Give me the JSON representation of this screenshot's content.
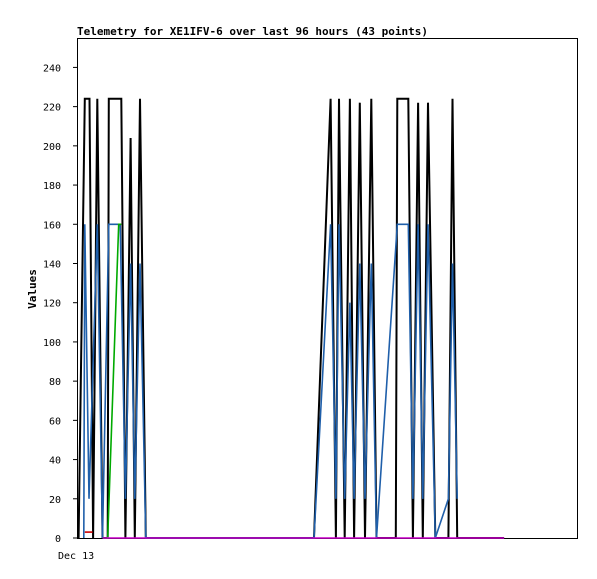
{
  "chart_data": {
    "type": "line",
    "title": "Telemetry for XE1IFV-6 over last 96 hours (43 points)",
    "xlabel": "",
    "ylabel": "Values",
    "x_tick_labels": [
      "Dec 13"
    ],
    "y_ticks": [
      0,
      20,
      40,
      60,
      80,
      100,
      120,
      140,
      160,
      180,
      200,
      220,
      240
    ],
    "ylim": [
      0,
      255
    ],
    "grid": false,
    "legend": "none",
    "series": [
      {
        "color": "#000000",
        "points": [
          [
            0.3,
            0
          ],
          [
            1.5,
            224
          ],
          [
            2.4,
            224
          ],
          [
            3.1,
            0
          ],
          [
            3.9,
            224
          ],
          [
            4.9,
            0
          ],
          [
            5.9,
            0
          ],
          [
            6.1,
            224
          ],
          [
            8.5,
            224
          ],
          [
            9.3,
            0
          ],
          [
            10.3,
            204
          ],
          [
            11.1,
            0
          ],
          [
            12.1,
            224
          ],
          [
            13.2,
            0
          ],
          [
            14.0,
            0
          ],
          [
            45.5,
            0
          ],
          [
            48.7,
            224
          ],
          [
            49.7,
            0
          ],
          [
            50.3,
            224
          ],
          [
            51.4,
            0
          ],
          [
            52.4,
            224
          ],
          [
            53.2,
            0
          ],
          [
            54.3,
            222
          ],
          [
            55.3,
            0
          ],
          [
            56.5,
            224
          ],
          [
            57.5,
            0
          ],
          [
            61.2,
            0
          ],
          [
            61.5,
            224
          ],
          [
            63.6,
            224
          ],
          [
            64.5,
            0
          ],
          [
            65.5,
            222
          ],
          [
            66.4,
            0
          ],
          [
            67.4,
            222
          ],
          [
            68.8,
            0
          ],
          [
            71.3,
            0
          ],
          [
            72.1,
            224
          ],
          [
            73.0,
            0
          ],
          [
            82.0,
            0
          ]
        ]
      },
      {
        "color": "#1f5faa",
        "points": [
          [
            1.3,
            0
          ],
          [
            1.5,
            160
          ],
          [
            2.3,
            20
          ],
          [
            3.9,
            160
          ],
          [
            4.9,
            0
          ],
          [
            6.1,
            160
          ],
          [
            8.3,
            160
          ],
          [
            9.3,
            20
          ],
          [
            10.3,
            140
          ],
          [
            11.1,
            20
          ],
          [
            12.1,
            140
          ],
          [
            13.2,
            0
          ],
          [
            45.5,
            0
          ],
          [
            48.7,
            160
          ],
          [
            49.7,
            20
          ],
          [
            50.3,
            160
          ],
          [
            51.4,
            20
          ],
          [
            52.4,
            120
          ],
          [
            53.2,
            20
          ],
          [
            54.3,
            140
          ],
          [
            55.3,
            20
          ],
          [
            56.5,
            140
          ],
          [
            57.5,
            0
          ],
          [
            61.5,
            160
          ],
          [
            63.6,
            160
          ],
          [
            64.5,
            20
          ],
          [
            65.5,
            160
          ],
          [
            66.4,
            20
          ],
          [
            67.4,
            160
          ],
          [
            68.8,
            0
          ],
          [
            71.3,
            20
          ],
          [
            72.1,
            140
          ],
          [
            73.0,
            20
          ]
        ]
      },
      {
        "color": "#00aa00",
        "points": [
          [
            4.9,
            0
          ],
          [
            5.9,
            0
          ],
          [
            8.0,
            160
          ],
          [
            8.5,
            160
          ]
        ]
      },
      {
        "color": "#cc0000",
        "points": [
          [
            1.5,
            3
          ],
          [
            3.0,
            3
          ]
        ]
      },
      {
        "color": "#cc00cc",
        "points": [
          [
            4.9,
            0
          ],
          [
            82.0,
            0
          ]
        ]
      }
    ]
  }
}
